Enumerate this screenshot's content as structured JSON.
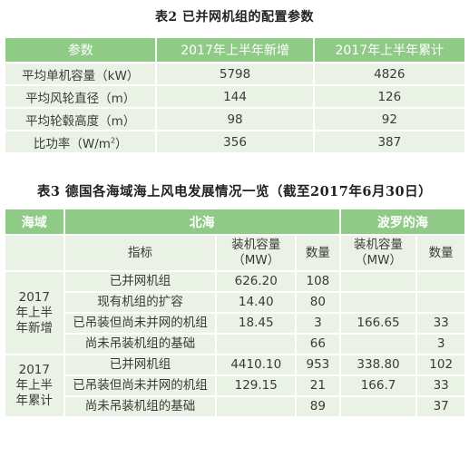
{
  "table2": {
    "caption": "表2 已并网机组的配置参数",
    "headers": [
      "参数",
      "2017年上半年新增",
      "2017年上半年累计"
    ],
    "rows": [
      {
        "param": "平均单机容量（kW）",
        "new": "5798",
        "cum": "4826"
      },
      {
        "param": "平均风轮直径（m）",
        "new": "144",
        "cum": "126"
      },
      {
        "param": "平均轮毂高度（m）",
        "new": "98",
        "cum": "92"
      },
      {
        "param_pre": "比功率（W/m",
        "param_sup": "2",
        "param_post": "）",
        "new": "356",
        "cum": "387"
      }
    ]
  },
  "table3": {
    "caption": "表3 德国各海域海上风电发展情况一览（截至2017年6月30日）",
    "header_sea": "海域",
    "header_north": "北海",
    "header_baltic": "波罗的海",
    "sub": {
      "indicator": "指标",
      "capacity_line1": "装机容量",
      "capacity_line2": "（MW）",
      "count": "数量"
    },
    "group1_label": [
      "2017",
      "年上半",
      "年新增"
    ],
    "group1_rows": [
      {
        "ind": "已并网机组",
        "n_cap": "626.20",
        "n_cnt": "108",
        "b_cap": "",
        "b_cnt": ""
      },
      {
        "ind": "现有机组的扩容",
        "n_cap": "14.40",
        "n_cnt": "80",
        "b_cap": "",
        "b_cnt": ""
      },
      {
        "ind": "已吊装但尚未并网的机组",
        "n_cap": "18.45",
        "n_cnt": "3",
        "b_cap": "166.65",
        "b_cnt": "33"
      },
      {
        "ind": "尚未吊装机组的基础",
        "n_cap": "",
        "n_cnt": "66",
        "b_cap": "",
        "b_cnt": "3"
      }
    ],
    "group2_label": [
      "2017",
      "年上半",
      "年累计"
    ],
    "group2_rows": [
      {
        "ind": "已并网机组",
        "n_cap": "4410.10",
        "n_cnt": "953",
        "b_cap": "338.80",
        "b_cnt": "102"
      },
      {
        "ind": "已吊装但尚未并网的机组",
        "n_cap": "129.15",
        "n_cnt": "21",
        "b_cap": "166.7",
        "b_cnt": "33"
      },
      {
        "ind": "尚未吊装机组的基础",
        "n_cap": "",
        "n_cnt": "89",
        "b_cap": "",
        "b_cnt": "37"
      }
    ]
  }
}
